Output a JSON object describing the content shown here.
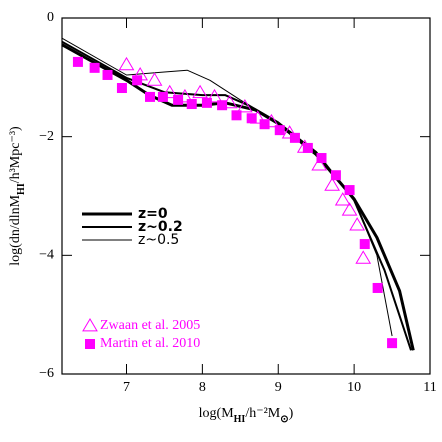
{
  "chart_data": {
    "type": "line",
    "xlabel": [
      "log(M",
      "HI",
      "/h⁻²M",
      "⊙",
      ")"
    ],
    "ylabel": [
      "log(dn/dlnM",
      "HI",
      "/h³Mpc⁻³)"
    ],
    "xlim": [
      6.15,
      11
    ],
    "ylim": [
      -6,
      0
    ],
    "xticks": [
      7,
      8,
      9,
      10,
      11
    ],
    "yticks": [
      0,
      {
        "value": -2,
        "label": "−2"
      },
      {
        "value": -4,
        "label": "−4"
      },
      {
        "value": -6,
        "label": "−6"
      }
    ],
    "series": [
      {
        "name": "z=0",
        "color": "#000000",
        "width": 3,
        "x": [
          6.15,
          6.5,
          7,
          7.3,
          7.6,
          8,
          8.3,
          8.7,
          9,
          9.5,
          10,
          10.3,
          10.6,
          10.78
        ],
        "values": [
          -0.45,
          -0.7,
          -1.05,
          -1.3,
          -1.47,
          -1.47,
          -1.43,
          -1.55,
          -1.78,
          -2.3,
          -3.05,
          -3.7,
          -4.6,
          -5.6
        ]
      },
      {
        "name": "z~0.2",
        "color": "#000000",
        "width": 2,
        "x": [
          6.15,
          7,
          7.5,
          8,
          8.3,
          8.6,
          9,
          9.5,
          10,
          10.4,
          10.75
        ],
        "values": [
          -0.4,
          -1.01,
          -1.25,
          -1.3,
          -1.3,
          -1.47,
          -1.77,
          -2.26,
          -3.07,
          -4.25,
          -5.6
        ]
      },
      {
        "name": "z~0.5",
        "color": "#000000",
        "width": 1,
        "x": [
          6.15,
          7,
          7.5,
          7.8,
          8.1,
          8.5,
          9,
          9.5,
          10,
          10.3,
          10.5
        ],
        "values": [
          -0.34,
          -0.96,
          -0.91,
          -0.88,
          -1.05,
          -1.38,
          -1.75,
          -2.26,
          -3.07,
          -4.0,
          -5.36
        ]
      },
      {
        "name": "Zwaan et al. 2005",
        "color": "#ff00ff",
        "marker": "triangle",
        "x": [
          7.0,
          7.18,
          7.37,
          7.57,
          7.77,
          7.97,
          8.16,
          8.36,
          8.56,
          8.73,
          8.91,
          9.15,
          9.35,
          9.54,
          9.71,
          9.85,
          9.94,
          10.04,
          10.12
        ],
        "values": [
          -0.79,
          -0.96,
          -1.05,
          -1.26,
          -1.33,
          -1.26,
          -1.33,
          -1.43,
          -1.5,
          -1.69,
          -1.75,
          -1.94,
          -2.18,
          -2.48,
          -2.82,
          -3.07,
          -3.24,
          -3.49,
          -4.05
        ]
      },
      {
        "name": "Martin et al. 2010",
        "color": "#ff00ff",
        "marker": "square",
        "x": [
          6.36,
          6.58,
          6.75,
          6.94,
          7.14,
          7.31,
          7.48,
          7.68,
          7.86,
          8.06,
          8.26,
          8.45,
          8.65,
          8.82,
          9.02,
          9.22,
          9.39,
          9.57,
          9.76,
          9.94,
          10.14,
          10.31,
          10.5
        ],
        "values": [
          -0.74,
          -0.84,
          -0.96,
          -1.18,
          -1.05,
          -1.33,
          -1.33,
          -1.38,
          -1.45,
          -1.43,
          -1.47,
          -1.64,
          -1.69,
          -1.79,
          -1.89,
          -2.02,
          -2.19,
          -2.36,
          -2.65,
          -2.9,
          -3.81,
          -4.55,
          -5.48
        ]
      }
    ]
  }
}
